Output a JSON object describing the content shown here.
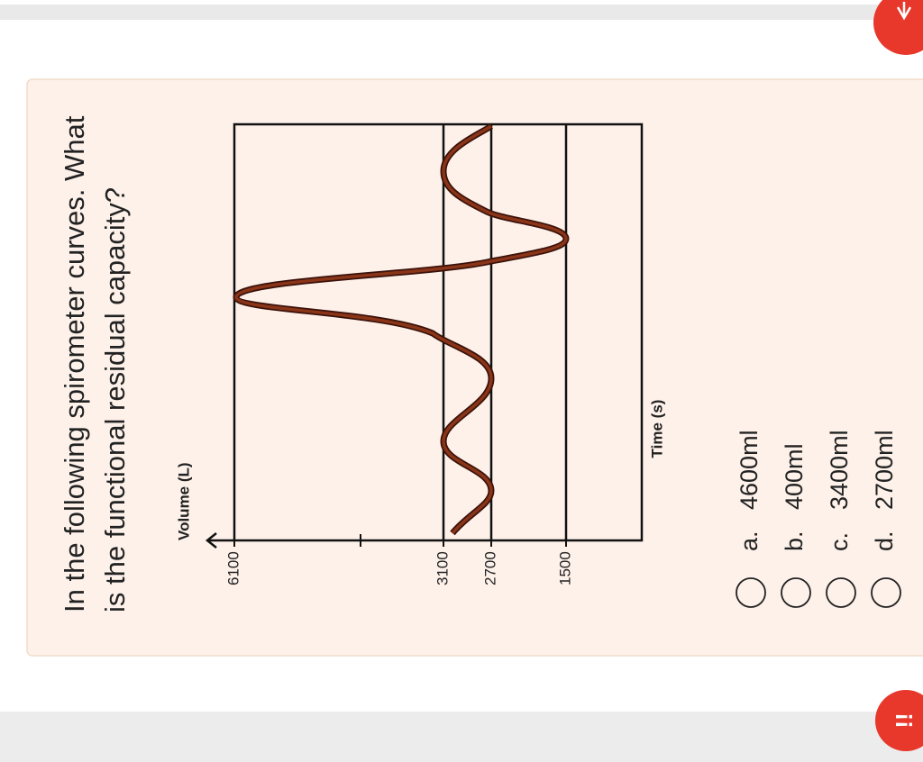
{
  "question": {
    "lines": [
      "In the following spirometer curves. What",
      "is the functional residual capacity?"
    ]
  },
  "figure": {
    "y_axis_label": "Volume (L)",
    "x_axis_label": "Time (s)",
    "tick_labels": [
      "6100",
      "3100",
      "2700",
      "1500"
    ]
  },
  "options": [
    {
      "letter": "a.",
      "text": "4600ml"
    },
    {
      "letter": "b.",
      "text": "400ml"
    },
    {
      "letter": "c.",
      "text": "3400ml"
    },
    {
      "letter": "d.",
      "text": "2700ml"
    }
  ],
  "alert": "!!"
}
